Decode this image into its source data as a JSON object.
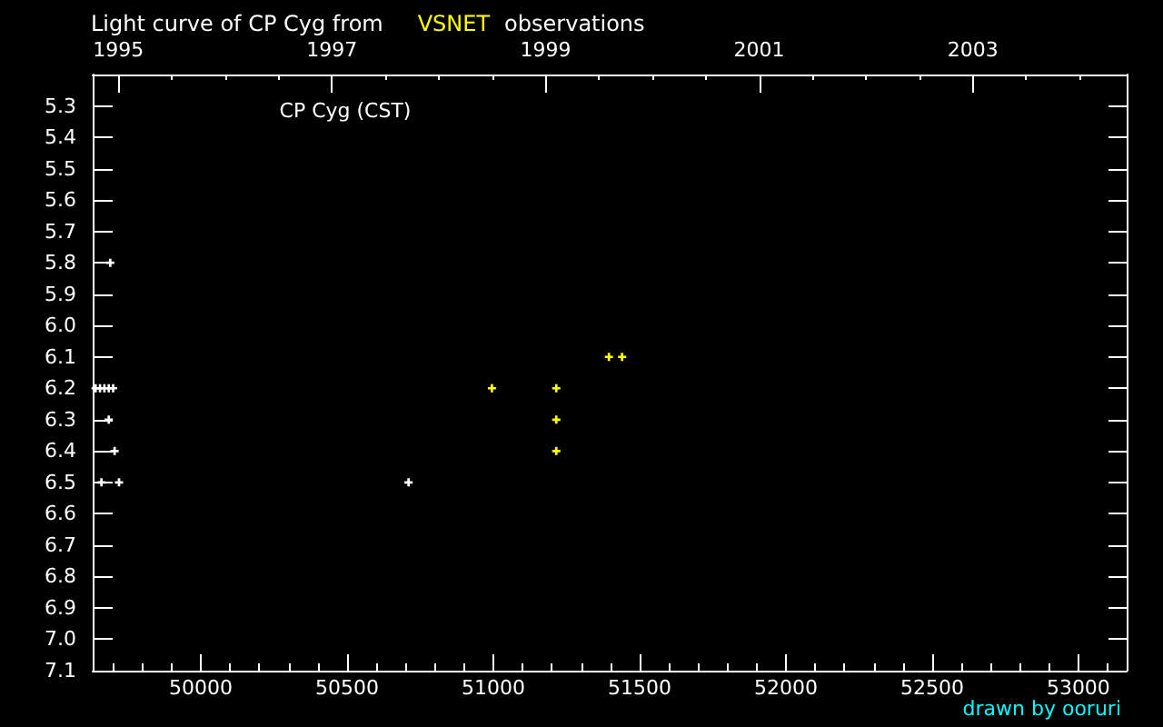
{
  "chart_data": {
    "type": "scatter",
    "title": "Light curve of CP Cyg from",
    "subtitle": "observations",
    "annotations": [
      "CP Cyg (CST)",
      "drawn by ooruri"
    ],
    "series": [
      {
        "color": "#ffffff",
        "x": [
          49640,
          49655,
          49660,
          49670,
          49685,
          49685,
          49690,
          49700,
          49705,
          49720,
          50710
        ],
        "values": [
          6.2,
          6.2,
          6.5,
          6.2,
          6.2,
          6.3,
          5.8,
          6.2,
          6.4,
          6.5,
          6.5
        ]
      },
      {
        "name": "VSNET",
        "color": "#ffff00",
        "x": [
          50995,
          51215,
          51215,
          51215,
          51395,
          51440
        ],
        "values": [
          6.2,
          6.2,
          6.3,
          6.4,
          6.1,
          6.1
        ]
      }
    ],
    "xlim": [
      49630,
      53165
    ],
    "xticks": [
      {
        "value": 49700,
        "label": null
      },
      {
        "value": 49800,
        "label": null
      },
      {
        "value": 49900,
        "label": null
      },
      50000,
      {
        "value": 50100,
        "label": null
      },
      {
        "value": 50200,
        "label": null
      },
      {
        "value": 50300,
        "label": null
      },
      {
        "value": 50400,
        "label": null
      },
      50500,
      {
        "value": 50600,
        "label": null
      },
      {
        "value": 50700,
        "label": null
      },
      {
        "value": 50800,
        "label": null
      },
      {
        "value": 50900,
        "label": null
      },
      51000,
      {
        "value": 51100,
        "label": null
      },
      {
        "value": 51200,
        "label": null
      },
      {
        "value": 51300,
        "label": null
      },
      {
        "value": 51400,
        "label": null
      },
      51500,
      {
        "value": 51600,
        "label": null
      },
      {
        "value": 51700,
        "label": null
      },
      {
        "value": 51800,
        "label": null
      },
      {
        "value": 51900,
        "label": null
      },
      52000,
      {
        "value": 52100,
        "label": null
      },
      {
        "value": 52200,
        "label": null
      },
      {
        "value": 52300,
        "label": null
      },
      {
        "value": 52400,
        "label": null
      },
      52500,
      {
        "value": 52600,
        "label": null
      },
      {
        "value": 52700,
        "label": null
      },
      {
        "value": 52800,
        "label": null
      },
      {
        "value": 52900,
        "label": null
      },
      53000,
      {
        "value": 53100,
        "label": null
      }
    ],
    "x2lim": [
      1994.76,
      2004.44
    ],
    "x2ticks": [
      1995,
      {
        "value": 1995.5,
        "label": null
      },
      {
        "value": 1996,
        "label": null
      },
      {
        "value": 1996.5,
        "label": null
      },
      1997,
      {
        "value": 1997.5,
        "label": null
      },
      {
        "value": 1998,
        "label": null
      },
      {
        "value": 1998.5,
        "label": null
      },
      1999,
      {
        "value": 1999.5,
        "label": null
      },
      {
        "value": 2000,
        "label": null
      },
      {
        "value": 2000.5,
        "label": null
      },
      2001,
      {
        "value": 2001.5,
        "label": null
      },
      {
        "value": 2002,
        "label": null
      },
      {
        "value": 2002.5,
        "label": null
      },
      2003,
      {
        "value": 2003.5,
        "label": null
      },
      {
        "value": 2004,
        "label": null
      }
    ],
    "ylim": [
      7.1,
      5.2
    ],
    "yticks": [
      5.3,
      5.4,
      5.5,
      5.6,
      5.7,
      5.8,
      5.9,
      {
        "value": 6,
        "label": "6.0"
      },
      6.1,
      6.2,
      6.3,
      6.4,
      6.5,
      6.6,
      6.7,
      6.8,
      6.9,
      {
        "value": 7,
        "label": "7.0"
      },
      7.1
    ],
    "marker": "cross",
    "grid": false,
    "legend": "top"
  }
}
